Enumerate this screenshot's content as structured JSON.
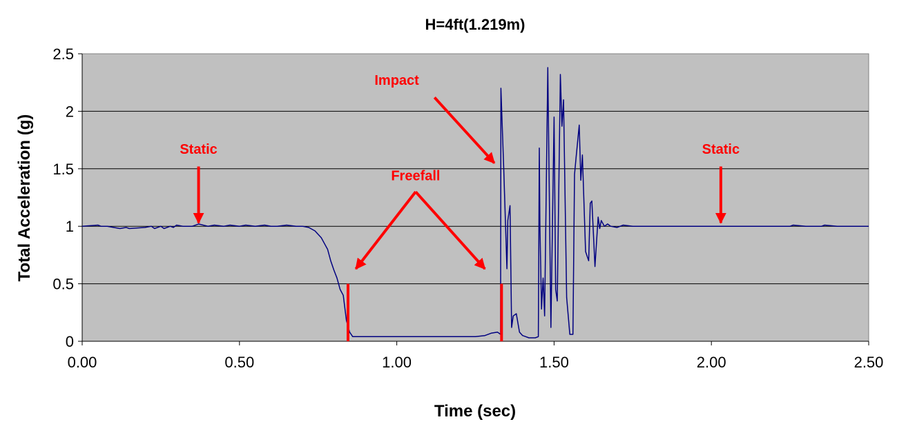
{
  "chart_data": {
    "type": "line",
    "title": "H=4ft(1.219m)",
    "xlabel": "Time (sec)",
    "ylabel": "Total Acceleration (g)",
    "xlim": [
      0,
      2.5
    ],
    "ylim": [
      0,
      2.5
    ],
    "x_ticks": [
      0,
      0.5,
      1.0,
      1.5,
      2.0,
      2.5
    ],
    "x_tick_labels": [
      "0.00",
      "0.50",
      "1.00",
      "1.50",
      "2.00",
      "2.50"
    ],
    "y_ticks": [
      0,
      0.5,
      1,
      1.5,
      2,
      2.5
    ],
    "y_tick_labels": [
      "0",
      "0.5",
      "1",
      "1.5",
      "2",
      "2.5"
    ],
    "grid": "horizontal",
    "background_color": "#c0c0c0",
    "line_color": "#000080",
    "annotation_color": "#ff0000",
    "series": [
      {
        "x": [
          0.0,
          0.05,
          0.06,
          0.08,
          0.1,
          0.12,
          0.14,
          0.15,
          0.2,
          0.22,
          0.23,
          0.25,
          0.26,
          0.28,
          0.29,
          0.3,
          0.32,
          0.35,
          0.37,
          0.4,
          0.42,
          0.45,
          0.47,
          0.5,
          0.52,
          0.55,
          0.58,
          0.6,
          0.62,
          0.65,
          0.68,
          0.7,
          0.72,
          0.74,
          0.75,
          0.76,
          0.77,
          0.78,
          0.79,
          0.8,
          0.81,
          0.82,
          0.83,
          0.84,
          0.85,
          0.86,
          0.87,
          0.88,
          0.9,
          0.95,
          1.0,
          1.05,
          1.1,
          1.15,
          1.2,
          1.25,
          1.28,
          1.3,
          1.32,
          1.33,
          1.331,
          1.34,
          1.35,
          1.353,
          1.36,
          1.365,
          1.37,
          1.38,
          1.39,
          1.4,
          1.41,
          1.42,
          1.44,
          1.45,
          1.453,
          1.455,
          1.46,
          1.465,
          1.47,
          1.48,
          1.49,
          1.5,
          1.505,
          1.51,
          1.52,
          1.525,
          1.53,
          1.54,
          1.55,
          1.56,
          1.565,
          1.57,
          1.58,
          1.585,
          1.59,
          1.6,
          1.61,
          1.615,
          1.62,
          1.63,
          1.64,
          1.645,
          1.65,
          1.66,
          1.67,
          1.68,
          1.7,
          1.72,
          1.75,
          1.8,
          1.85,
          1.9,
          2.0,
          2.1,
          2.2,
          2.25,
          2.26,
          2.3,
          2.35,
          2.36,
          2.4,
          2.5
        ],
        "y": [
          1.0,
          1.01,
          1.0,
          1.0,
          0.99,
          0.98,
          0.99,
          0.98,
          0.99,
          1.0,
          0.98,
          1.0,
          0.98,
          1.0,
          0.99,
          1.01,
          1.0,
          1.0,
          1.02,
          1.0,
          1.01,
          1.0,
          1.01,
          1.0,
          1.01,
          1.0,
          1.01,
          1.0,
          1.0,
          1.01,
          1.0,
          1.0,
          0.99,
          0.96,
          0.93,
          0.9,
          0.85,
          0.8,
          0.7,
          0.62,
          0.55,
          0.45,
          0.4,
          0.18,
          0.08,
          0.04,
          0.04,
          0.04,
          0.04,
          0.04,
          0.04,
          0.04,
          0.04,
          0.04,
          0.04,
          0.04,
          0.05,
          0.07,
          0.08,
          0.06,
          2.2,
          1.5,
          0.63,
          1.05,
          1.18,
          0.12,
          0.22,
          0.24,
          0.08,
          0.05,
          0.04,
          0.03,
          0.03,
          0.04,
          1.68,
          1.0,
          0.28,
          0.55,
          0.22,
          2.38,
          0.12,
          1.95,
          0.45,
          0.35,
          2.32,
          1.87,
          2.1,
          0.38,
          0.06,
          0.06,
          1.45,
          1.6,
          1.88,
          1.4,
          1.62,
          0.78,
          0.7,
          1.2,
          1.22,
          0.65,
          1.08,
          0.98,
          1.05,
          1.0,
          1.02,
          1.0,
          0.99,
          1.01,
          1.0,
          1.0,
          1.0,
          1.0,
          1.0,
          1.0,
          1.0,
          1.0,
          1.01,
          1.0,
          1.0,
          1.01,
          1.0,
          1.0
        ]
      }
    ],
    "markers": [
      {
        "x": 0.845,
        "y_from": 0,
        "y_to": 0.5
      },
      {
        "x": 1.333,
        "y_from": 0,
        "y_to": 0.5
      }
    ],
    "annotations": [
      {
        "text": "Static",
        "label_x": 0.37,
        "label_y": 1.63,
        "arrows": [
          {
            "from": [
              0.37,
              1.52
            ],
            "to": [
              0.37,
              1.03
            ]
          }
        ]
      },
      {
        "text": "Freefall",
        "label_x": 1.06,
        "label_y": 1.4,
        "arrows": [
          {
            "from": [
              1.06,
              1.3
            ],
            "to": [
              0.87,
              0.63
            ]
          },
          {
            "from": [
              1.06,
              1.3
            ],
            "to": [
              1.28,
              0.63
            ]
          }
        ]
      },
      {
        "text": "Impact",
        "label_x": 1.0,
        "label_y": 2.23,
        "arrows": [
          {
            "from": [
              1.12,
              2.12
            ],
            "to": [
              1.31,
              1.55
            ]
          }
        ]
      },
      {
        "text": "Static",
        "label_x": 2.03,
        "label_y": 1.63,
        "arrows": [
          {
            "from": [
              2.03,
              1.52
            ],
            "to": [
              2.03,
              1.03
            ]
          }
        ]
      }
    ]
  }
}
